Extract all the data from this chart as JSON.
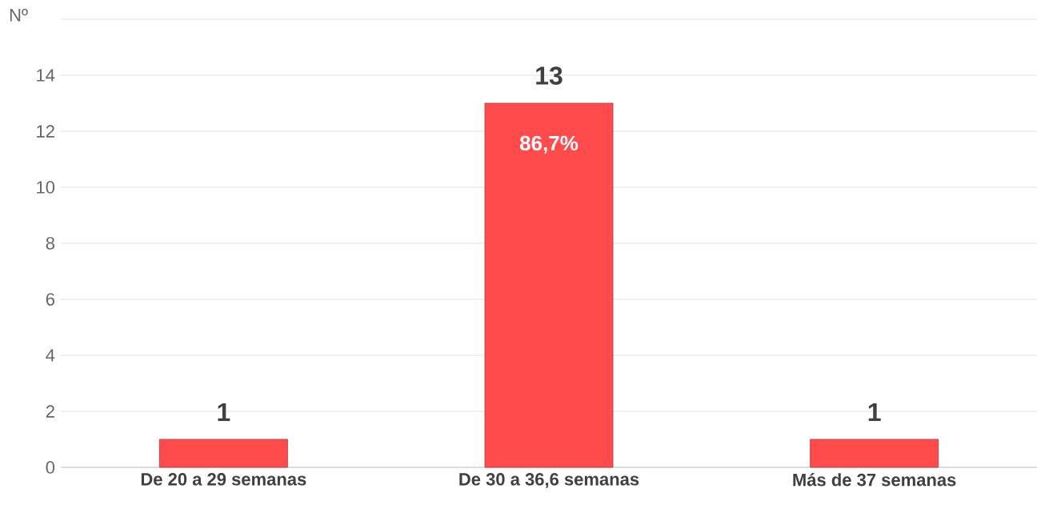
{
  "chart_data": {
    "type": "bar",
    "ylabel": "Nº",
    "categories": [
      "De 20 a 29 semanas",
      "De 30 a 36,6 semanas",
      "Más de 37 semanas"
    ],
    "values": [
      1,
      13,
      1
    ],
    "color": "#ff4b4b",
    "data_labels": true,
    "ylim": [
      0,
      16
    ],
    "yticks": [
      0,
      2,
      4,
      6,
      8,
      10,
      12,
      14,
      {
        "value": 16,
        "label": null
      }
    ],
    "grid": "y",
    "annotations": [
      "86,7%"
    ]
  }
}
